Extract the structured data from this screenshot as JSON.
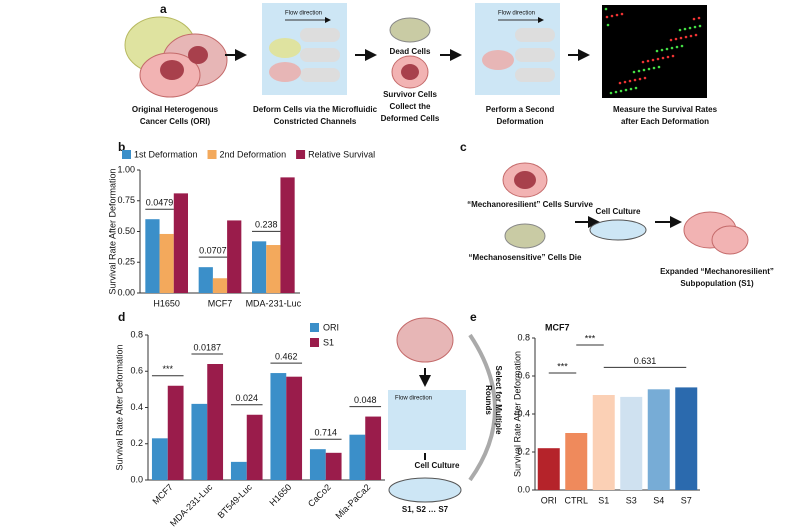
{
  "panel_labels": [
    "a",
    "b",
    "c",
    "d",
    "e"
  ],
  "panel_a": {
    "steps": [
      [
        "Original Heterogenous",
        "Cancer Cells (ORI)"
      ],
      [
        "Deform Cells via the Microfluidic",
        "Constricted Channels"
      ],
      [
        "Collect the",
        "Deformed Cells"
      ],
      [
        "Perform a Second",
        "Deformation"
      ],
      [
        "Measure the Survival Rates",
        "after Each Deformation"
      ]
    ],
    "flow": "Flow direction",
    "dead": "Dead Cells",
    "survivor": "Survivor Cells"
  },
  "panel_c": {
    "survive": "“Mechanoresilient” Cells Survive",
    "die": "“Mechanosensitive” Cells Die",
    "culture": "Cell Culture",
    "result": [
      "Expanded “Mechanoresilient”",
      "Subpopulation (S1)"
    ]
  },
  "panel_e": {
    "flow": "Flow direction",
    "culture": "Cell Culture",
    "rounds": "S1, S2 … S7",
    "select": [
      "Select for Multiple",
      "Rounds"
    ]
  },
  "chart_data": [
    {
      "type": "bar",
      "y_label": "Survival Rate After Deformation",
      "categories": [
        "H1650",
        "MCF7",
        "MDA-231-Luc"
      ],
      "series": [
        {
          "name": "1st Deformation",
          "color": "#3b8fc9",
          "values": [
            0.6,
            0.21,
            0.42
          ]
        },
        {
          "name": "2nd Deformation",
          "color": "#f3a95c",
          "values": [
            0.48,
            0.12,
            0.39
          ]
        },
        {
          "name": "Relative Survival",
          "color": "#9a1c4b",
          "values": [
            0.81,
            0.59,
            0.94
          ]
        }
      ],
      "annotations": [
        "0.0479",
        "0.0707",
        "0.238"
      ],
      "ylim": [
        0,
        1
      ],
      "yticks": [
        {
          "value": 0,
          "label": "0.00"
        },
        0.25,
        {
          "value": 0.5,
          "label": "0.50"
        },
        0.75,
        {
          "value": 1,
          "label": "1.00"
        }
      ]
    },
    {
      "type": "bar",
      "y_label": "Survival Rate After Deformation",
      "categories": [
        "MCF7",
        "MDA-231-Luc",
        "BT549-Luc",
        "H1650",
        "CaCo2",
        "Mia-PaCa2"
      ],
      "series": [
        {
          "name": "ORI",
          "color": "#3b8fc9",
          "values": [
            0.23,
            0.42,
            0.1,
            0.59,
            0.17,
            0.25
          ]
        },
        {
          "name": "S1",
          "color": "#9a1c4b",
          "values": [
            0.52,
            0.64,
            0.36,
            0.57,
            0.15,
            0.35
          ]
        }
      ],
      "annotations": [
        "***",
        "0.0187",
        "0.024",
        "0.462",
        "0.714",
        "0.048"
      ],
      "ylim": [
        0,
        0.8
      ],
      "yticks": [
        {
          "value": 0,
          "label": "0.0"
        },
        0.2,
        0.4,
        0.6,
        0.8
      ]
    },
    {
      "type": "bar",
      "title": "MCF7",
      "y_label": "Survival Rate After Deformation",
      "categories": [
        "ORI",
        "CTRL",
        "S1",
        "S3",
        "S4",
        "S7"
      ],
      "values": [
        0.22,
        0.3,
        0.5,
        0.49,
        0.53,
        0.54
      ],
      "colors": [
        "#b5232a",
        "#ef8a5c",
        "#fbd0b5",
        "#cfe1f0",
        "#77acd6",
        "#2b6aae"
      ],
      "annotations": [
        "***",
        "***",
        "0.631"
      ],
      "ylim": [
        0,
        0.8
      ],
      "yticks": [
        {
          "value": 0,
          "label": "0.0"
        },
        0.2,
        0.4,
        0.6,
        0.8
      ]
    }
  ]
}
